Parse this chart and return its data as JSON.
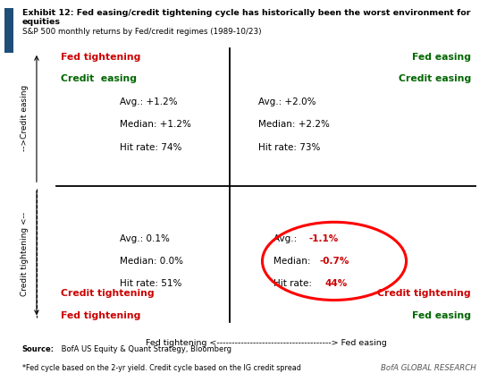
{
  "title_line1": "Exhibit 12: Fed easing/credit tightening cycle has historically been the worst environment for",
  "title_line2": "equities",
  "subtitle": "S&P 500 monthly returns by Fed/credit regimes (1989-10/23)",
  "source_bold": "Source:",
  "source_rest": " BofA US Equity & Quant Strategy, Bloomberg",
  "footnote": "*Fed cycle based on the 2-yr yield. Credit cycle based on the IG credit spread",
  "branding": "BofA GLOBAL RESEARCH",
  "quadrants": {
    "top_left": {
      "label1": "Fed tightening",
      "label1_color": "#cc0000",
      "label2": "Credit  easing",
      "label2_color": "#006600",
      "avg": "Avg.: +1.2%",
      "median": "Median: +1.2%",
      "hit_rate": "Hit rate: 74%",
      "stats_color": "#000000"
    },
    "top_right": {
      "label1": "Fed easing",
      "label1_color": "#006600",
      "label2": "Credit easing",
      "label2_color": "#006600",
      "avg": "Avg.: +2.0%",
      "median": "Median: +2.2%",
      "hit_rate": "Hit rate: 73%",
      "stats_color": "#000000"
    },
    "bottom_left": {
      "label1": "Fed tightening",
      "label1_color": "#cc0000",
      "label2": "Credit tightening",
      "label2_color": "#cc0000",
      "avg": "Avg.: 0.1%",
      "median": "Median: 0.0%",
      "hit_rate": "Hit rate: 51%",
      "stats_color": "#000000"
    },
    "bottom_right": {
      "label1": "Fed easing",
      "label1_color": "#006600",
      "label2": "Credit tightening",
      "label2_color": "#cc0000",
      "avg_prefix": "Avg.: ",
      "avg_value": "-1.1%",
      "median_prefix": "Median: ",
      "median_value": "-0.7%",
      "hit_prefix": "Hit rate: ",
      "hit_value": "44%",
      "stats_color": "#cc0000",
      "circled": true
    }
  },
  "x_axis_label": "Fed tightening <--------------------------------------> Fed easing",
  "y_axis_top_label": "-->Credit easing",
  "y_axis_bottom_label": "<--Credit tightening",
  "background_color": "#ffffff",
  "blue_bar_color": "#1f4e79"
}
